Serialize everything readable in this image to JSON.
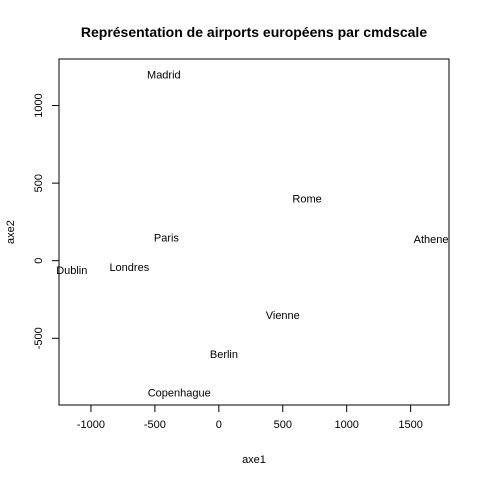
{
  "chart_data": {
    "type": "scatter",
    "title": "Représentation de airports européens par cmdscale",
    "xlabel": "axe1",
    "ylabel": "axe2",
    "xlim": [
      -1250,
      1800
    ],
    "ylim": [
      -930,
      1300
    ],
    "x_ticks": [
      -1000,
      -500,
      0,
      500,
      1000,
      1500
    ],
    "x_tick_labels": [
      "-1000",
      "-500",
      "0",
      "500",
      "1000",
      "1500"
    ],
    "y_ticks": [
      -500,
      0,
      500,
      1000
    ],
    "y_tick_labels": [
      "-500",
      "0",
      "500",
      "1000"
    ],
    "grid": false,
    "legend": "none",
    "marker": "text-label",
    "points": [
      {
        "label": "Madrid",
        "x": -430,
        "y": 1200
      },
      {
        "label": "Rome",
        "x": 690,
        "y": 400
      },
      {
        "label": "Paris",
        "x": -410,
        "y": 150
      },
      {
        "label": "Athene",
        "x": 1660,
        "y": 140
      },
      {
        "label": "Dublin",
        "x": -1150,
        "y": -60
      },
      {
        "label": "Londres",
        "x": -700,
        "y": -40
      },
      {
        "label": "Vienne",
        "x": 500,
        "y": -350
      },
      {
        "label": "Berlin",
        "x": 40,
        "y": -600
      },
      {
        "label": "Copenhague",
        "x": -310,
        "y": -850
      }
    ]
  }
}
